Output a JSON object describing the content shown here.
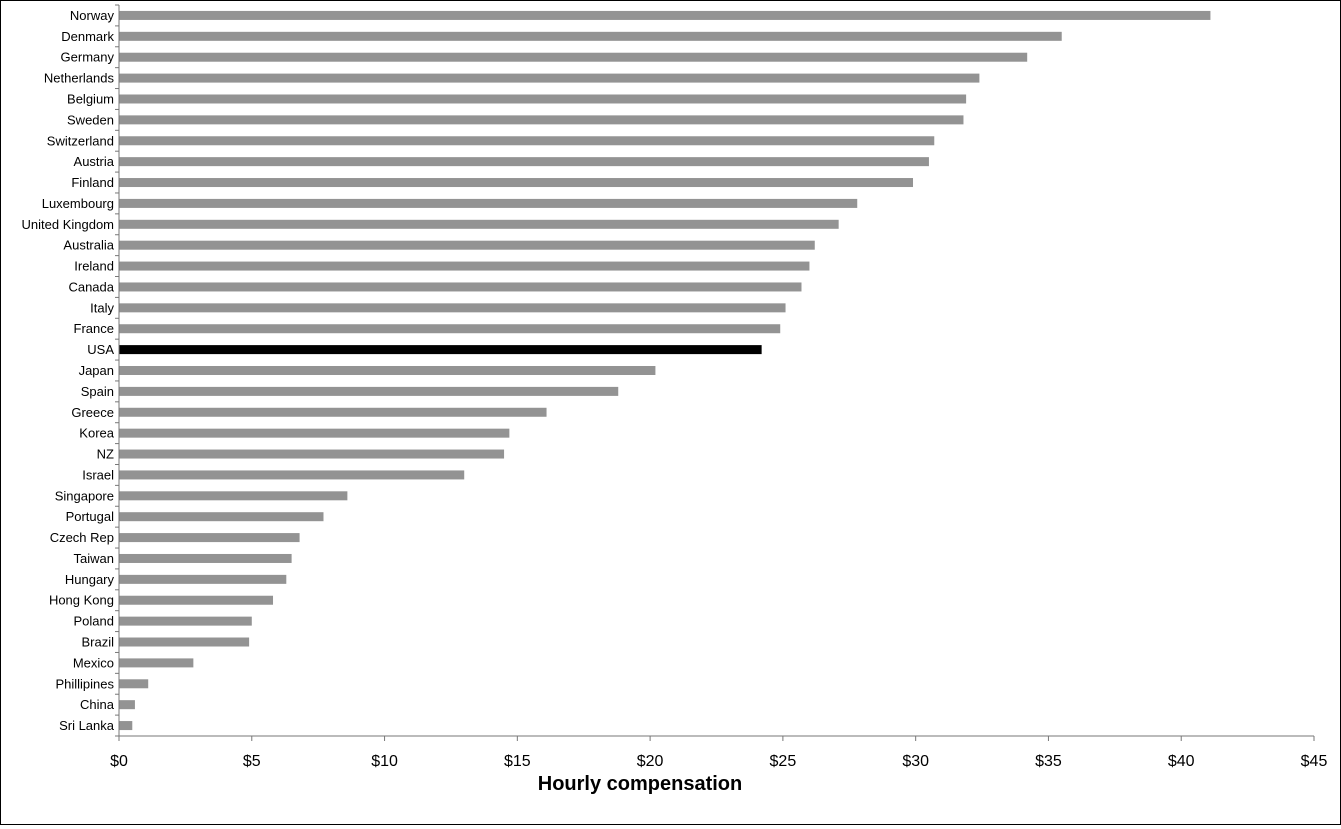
{
  "chart_data": {
    "type": "bar",
    "orientation": "horizontal",
    "categories": [
      "Norway",
      "Denmark",
      "Germany",
      "Netherlands",
      "Belgium",
      "Sweden",
      "Switzerland",
      "Austria",
      "Finland",
      "Luxembourg",
      "United Kingdom",
      "Australia",
      "Ireland",
      "Canada",
      "Italy",
      "France",
      "USA",
      "Japan",
      "Spain",
      "Greece",
      "Korea",
      "NZ",
      "Israel",
      "Singapore",
      "Portugal",
      "Czech Rep",
      "Taiwan",
      "Hungary",
      "Hong Kong",
      "Poland",
      "Brazil",
      "Mexico",
      "Phillipines",
      "China",
      "Sri Lanka"
    ],
    "values": [
      41.1,
      35.5,
      34.2,
      32.4,
      31.9,
      31.8,
      30.7,
      30.5,
      29.9,
      27.8,
      27.1,
      26.2,
      26.0,
      25.7,
      25.1,
      24.9,
      24.2,
      20.2,
      18.8,
      16.1,
      14.7,
      14.5,
      13.0,
      8.6,
      7.7,
      6.8,
      6.5,
      6.3,
      5.8,
      5.0,
      4.9,
      2.8,
      1.1,
      0.6,
      0.5
    ],
    "highlight": "USA",
    "colors": {
      "bar": "#939393",
      "highlight": "#000000",
      "axis": "#777777"
    },
    "xlim": [
      0,
      45
    ],
    "xticks": [
      0,
      5,
      10,
      15,
      20,
      25,
      30,
      35,
      40,
      45
    ],
    "xtick_labels": [
      "$0",
      "$5",
      "$10",
      "$15",
      "$20",
      "$25",
      "$30",
      "$35",
      "$40",
      "$45"
    ],
    "xlabel": "Hourly compensation",
    "ylabel": "",
    "title": "",
    "grid": false,
    "legend": "none"
  }
}
